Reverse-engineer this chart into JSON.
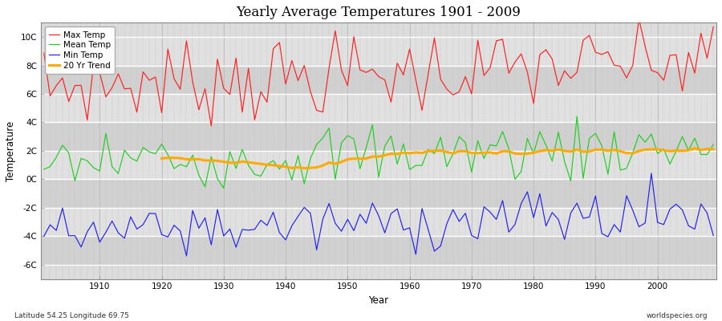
{
  "title": "Yearly Average Temperatures 1901 - 2009",
  "xlabel": "Year",
  "ylabel": "Temperature",
  "lat_label": "Latitude 54.25 Longitude 69.75",
  "source_label": "worldspecies.org",
  "year_start": 1901,
  "year_end": 2009,
  "fig_bg_color": "#ffffff",
  "plot_bg_color": "#dcdcdc",
  "legend_items": [
    "Max Temp",
    "Mean Temp",
    "Min Temp",
    "20 Yr Trend"
  ],
  "legend_colors": [
    "#ff2020",
    "#22cc22",
    "#2222ee",
    "#ffaa00"
  ],
  "line_colors": {
    "max": "#ff2020",
    "mean": "#22cc22",
    "min": "#2222ee",
    "trend": "#ffaa00"
  },
  "ylim": [
    -7.0,
    11.0
  ],
  "yticks": [
    -6,
    -4,
    -2,
    0,
    2,
    4,
    6,
    8,
    10
  ],
  "ytick_labels": [
    "-6C",
    "-4C",
    "-2C",
    "0C",
    "2C",
    "4C",
    "6C",
    "8C",
    "10C"
  ],
  "max_temp_base": 6.5,
  "mean_temp_base": 1.2,
  "min_temp_base": -3.8,
  "max_trend_gain": 1.8,
  "mean_trend_gain": 1.2,
  "min_trend_gain": 1.5,
  "max_amplitude": 1.4,
  "mean_amplitude": 1.1,
  "min_amplitude": 1.0,
  "seed": 7
}
